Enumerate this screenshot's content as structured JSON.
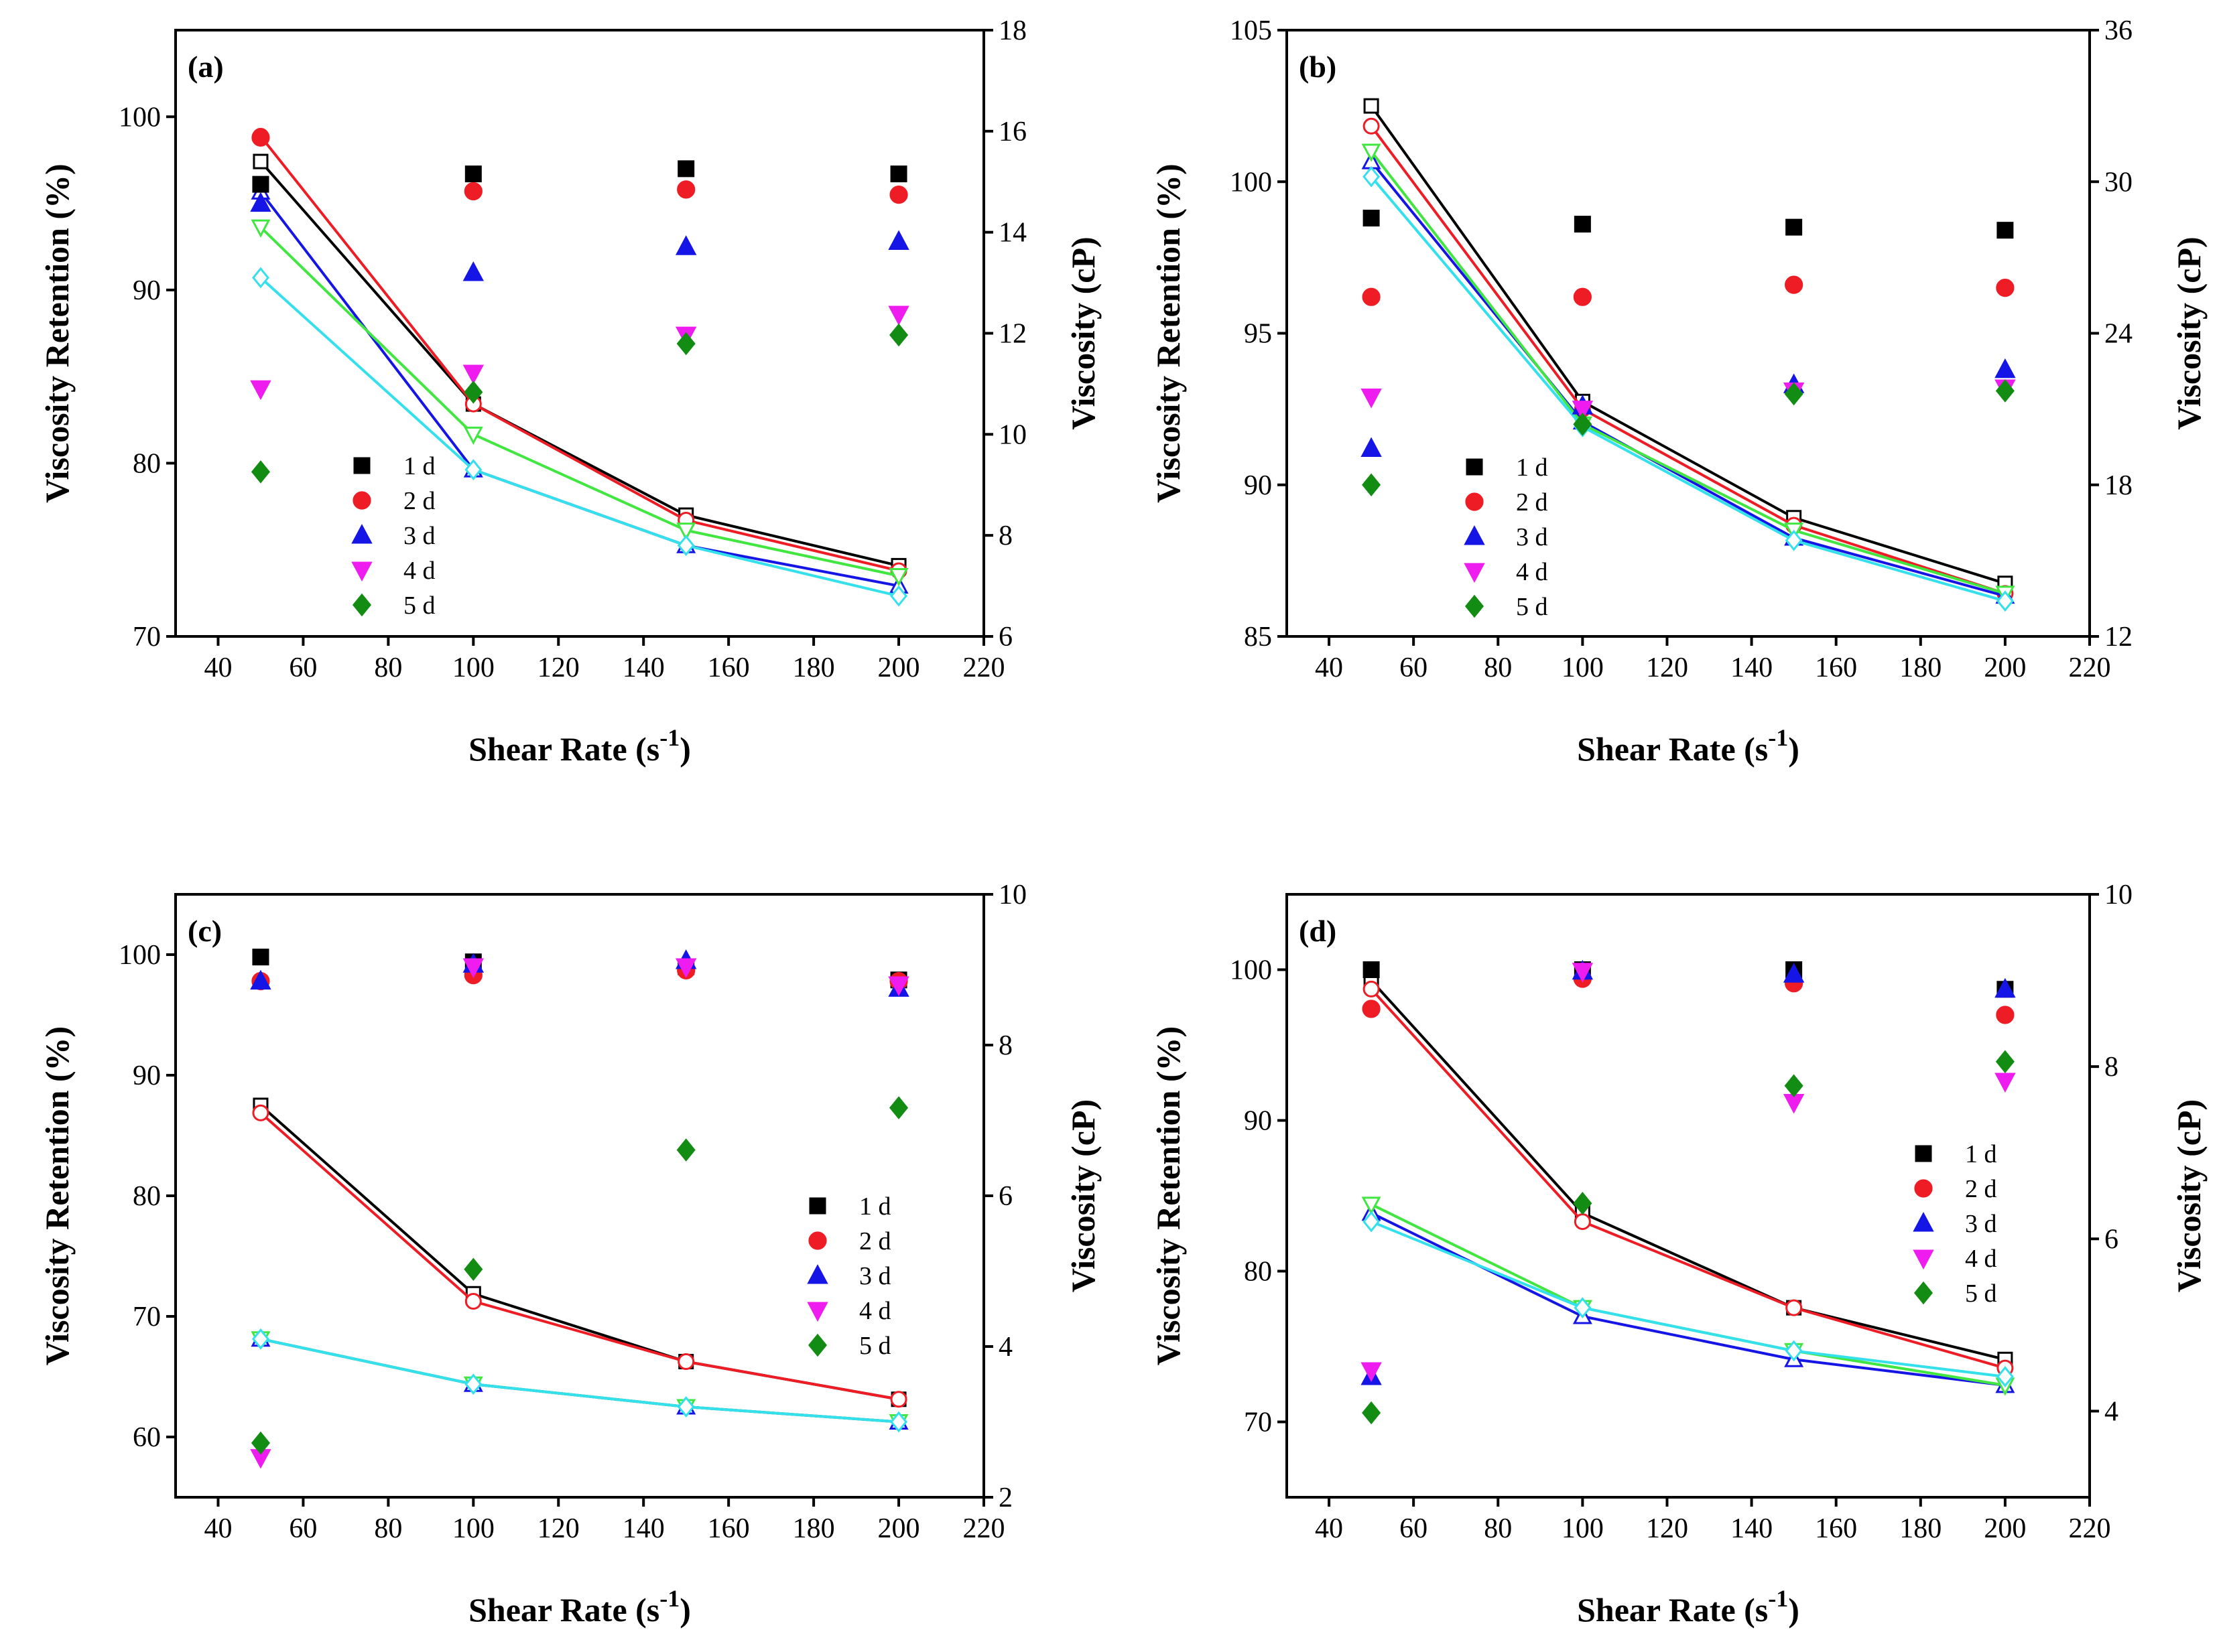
{
  "figure": {
    "series_colors": {
      "1 d": "#000000",
      "2 d": "#ee1c25",
      "3 d": "#1515e6",
      "4 d": "#ee1cee",
      "5 d": "#138c13"
    },
    "line_colors": {
      "1 d": "#000000",
      "2 d": "#ee1c25",
      "3 d": "#1515e6",
      "4 d": "#41e641",
      "5 d": "#34e0ec"
    },
    "markers": {
      "1 d": "square",
      "2 d": "circle",
      "3 d": "triangle-up",
      "4 d": "triangle-down",
      "5 d": "diamond"
    }
  },
  "chart_data": [
    {
      "panel": "(a)",
      "type": "scatter+line",
      "xlabel": "Shear Rate (s",
      "xlabel_sup": "-1",
      "xlabel_close": ")",
      "ylabel": "Viscosity Retention (%)",
      "y2label": "Viscosity (cP)",
      "xlim": [
        30,
        220
      ],
      "xticks": [
        40,
        60,
        80,
        100,
        120,
        140,
        160,
        180,
        200,
        220
      ],
      "ylim": [
        70,
        105
      ],
      "yticks": [
        70,
        80,
        90,
        100
      ],
      "y2lim": [
        6,
        18
      ],
      "y2ticks": [
        6,
        8,
        10,
        12,
        14,
        16,
        18
      ],
      "legend_position": "center-left",
      "x": [
        50,
        100,
        150,
        200
      ],
      "series": [
        {
          "name": "1 d",
          "retention": [
            96.1,
            96.7,
            97.0,
            96.7
          ],
          "viscosity": [
            15.4,
            10.6,
            8.4,
            7.4
          ]
        },
        {
          "name": "2 d",
          "retention": [
            98.8,
            95.7,
            95.8,
            95.5
          ],
          "viscosity": [
            15.9,
            10.6,
            8.3,
            7.3
          ]
        },
        {
          "name": "3 d",
          "retention": [
            95.0,
            91.0,
            92.5,
            92.8
          ],
          "viscosity": [
            14.8,
            9.3,
            7.8,
            7.0
          ]
        },
        {
          "name": "4 d",
          "retention": [
            84.3,
            85.2,
            87.4,
            88.6
          ],
          "viscosity": [
            14.1,
            10.0,
            8.1,
            7.2
          ]
        },
        {
          "name": "5 d",
          "retention": [
            79.5,
            84.1,
            86.9,
            87.4
          ],
          "viscosity": [
            13.1,
            9.3,
            7.8,
            6.8
          ]
        }
      ]
    },
    {
      "panel": "(b)",
      "type": "scatter+line",
      "xlabel": "Shear Rate (s",
      "xlabel_sup": "-1",
      "xlabel_close": ")",
      "ylabel": "Viscosity Retention (%)",
      "y2label": "Viscosity (cP)",
      "xlim": [
        30,
        220
      ],
      "xticks": [
        40,
        60,
        80,
        100,
        120,
        140,
        160,
        180,
        200,
        220
      ],
      "ylim": [
        85,
        105
      ],
      "yticks": [
        85,
        90,
        95,
        100,
        105
      ],
      "y2lim": [
        12,
        36
      ],
      "y2ticks": [
        12,
        18,
        24,
        30,
        36
      ],
      "legend_position": "center-left",
      "x": [
        50,
        100,
        150,
        200
      ],
      "series": [
        {
          "name": "1 d",
          "retention": [
            98.8,
            98.6,
            98.5,
            98.4
          ],
          "viscosity": [
            33.0,
            21.3,
            16.7,
            14.1
          ]
        },
        {
          "name": "2 d",
          "retention": [
            96.2,
            96.2,
            96.6,
            96.5
          ],
          "viscosity": [
            32.2,
            21.0,
            16.4,
            13.7
          ]
        },
        {
          "name": "3 d",
          "retention": [
            91.2,
            92.6,
            93.3,
            93.8
          ],
          "viscosity": [
            30.8,
            20.5,
            15.9,
            13.6
          ]
        },
        {
          "name": "4 d",
          "retention": [
            92.9,
            92.5,
            93.1,
            93.2
          ],
          "viscosity": [
            31.2,
            20.4,
            16.2,
            13.7
          ]
        },
        {
          "name": "5 d",
          "retention": [
            90.0,
            92.0,
            93.0,
            93.1
          ],
          "viscosity": [
            30.2,
            20.3,
            15.8,
            13.4
          ]
        }
      ]
    },
    {
      "panel": "(c)",
      "type": "scatter+line",
      "xlabel": "Shear Rate (s",
      "xlabel_sup": "-1",
      "xlabel_close": ")",
      "ylabel": "Viscosity Retention (%)",
      "y2label": "Viscosity (cP)",
      "xlim": [
        30,
        220
      ],
      "xticks": [
        40,
        60,
        80,
        100,
        120,
        140,
        160,
        180,
        200,
        220
      ],
      "ylim": [
        55,
        105
      ],
      "yticks": [
        60,
        70,
        80,
        90,
        100
      ],
      "y2lim": [
        2,
        10
      ],
      "y2ticks": [
        2,
        4,
        6,
        8,
        10
      ],
      "legend_position": "center-right",
      "x": [
        50,
        100,
        150,
        200
      ],
      "series": [
        {
          "name": "1 d",
          "retention": [
            99.8,
            99.4,
            99.0,
            97.9
          ],
          "viscosity": [
            7.2,
            4.7,
            3.8,
            3.3
          ]
        },
        {
          "name": "2 d",
          "retention": [
            97.8,
            98.3,
            98.7,
            97.8
          ],
          "viscosity": [
            7.1,
            4.6,
            3.8,
            3.3
          ]
        },
        {
          "name": "3 d",
          "retention": [
            97.8,
            99.2,
            99.5,
            97.2
          ],
          "viscosity": [
            4.1,
            3.5,
            3.2,
            3.0
          ]
        },
        {
          "name": "4 d",
          "retention": [
            58.3,
            99.0,
            99.0,
            97.5
          ],
          "viscosity": [
            4.1,
            3.5,
            3.2,
            3.0
          ]
        },
        {
          "name": "5 d",
          "retention": [
            59.5,
            73.9,
            83.8,
            87.3
          ],
          "viscosity": [
            4.1,
            3.5,
            3.2,
            3.0
          ]
        }
      ]
    },
    {
      "panel": "(d)",
      "type": "scatter+line",
      "xlabel": "Shear Rate (s",
      "xlabel_sup": "-1",
      "xlabel_close": ")",
      "ylabel": "Viscosity Retention (%)",
      "y2label": "Viscosity (cP)",
      "xlim": [
        30,
        220
      ],
      "xticks": [
        40,
        60,
        80,
        100,
        120,
        140,
        160,
        180,
        200,
        220
      ],
      "ylim": [
        65,
        105
      ],
      "yticks": [
        70,
        80,
        90,
        100
      ],
      "y2lim": [
        3,
        10
      ],
      "y2ticks": [
        4,
        6,
        8,
        10
      ],
      "legend_position": "center-right",
      "x": [
        50,
        100,
        150,
        200
      ],
      "series": [
        {
          "name": "1 d",
          "retention": [
            100.0,
            100.0,
            100.0,
            98.7
          ],
          "viscosity": [
            9.0,
            6.3,
            5.2,
            4.6
          ]
        },
        {
          "name": "2 d",
          "retention": [
            97.4,
            99.4,
            99.1,
            97.0
          ],
          "viscosity": [
            8.9,
            6.2,
            5.2,
            4.5
          ]
        },
        {
          "name": "3 d",
          "retention": [
            73.0,
            99.9,
            99.7,
            98.7
          ],
          "viscosity": [
            6.3,
            5.1,
            4.6,
            4.3
          ]
        },
        {
          "name": "4 d",
          "retention": [
            73.4,
            99.9,
            91.2,
            92.6
          ],
          "viscosity": [
            6.4,
            5.2,
            4.7,
            4.3
          ]
        },
        {
          "name": "5 d",
          "retention": [
            70.6,
            84.5,
            92.3,
            93.9
          ],
          "viscosity": [
            6.2,
            5.2,
            4.7,
            4.4
          ]
        }
      ]
    }
  ]
}
